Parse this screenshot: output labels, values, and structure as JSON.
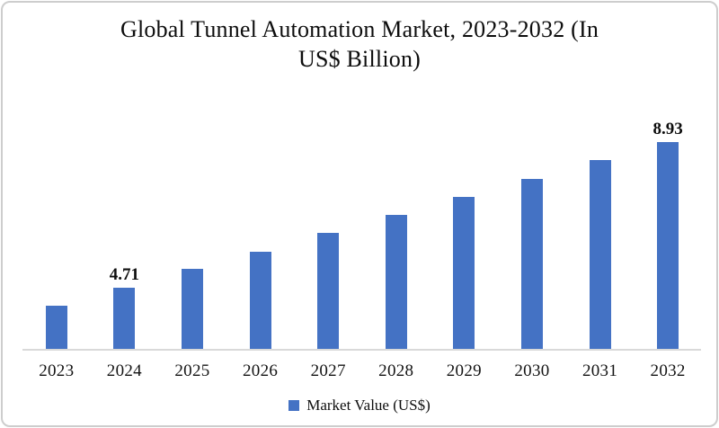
{
  "header": {
    "title_lines": [
      "Global Tunnel Automation Market, 2023-2032 (In",
      "US$ Billion)"
    ]
  },
  "chart_data": {
    "type": "bar",
    "title": "Global Tunnel Automation Market, 2023-2032 (In US$ Billion)",
    "xlabel": "",
    "ylabel": "",
    "categories": [
      "2023",
      "2024",
      "2025",
      "2026",
      "2027",
      "2028",
      "2029",
      "2030",
      "2031",
      "2032"
    ],
    "series": [
      {
        "name": "Market Value (US$)",
        "values": [
          4.18,
          4.71,
          5.24,
          5.76,
          6.29,
          6.82,
          7.35,
          7.87,
          8.4,
          8.93
        ]
      }
    ],
    "points": [
      {
        "year": "2023",
        "value": 4.18,
        "label": ""
      },
      {
        "year": "2024",
        "value": 4.71,
        "label": "4.71"
      },
      {
        "year": "2025",
        "value": 5.24,
        "label": ""
      },
      {
        "year": "2026",
        "value": 5.76,
        "label": ""
      },
      {
        "year": "2027",
        "value": 6.29,
        "label": ""
      },
      {
        "year": "2028",
        "value": 6.82,
        "label": ""
      },
      {
        "year": "2029",
        "value": 7.35,
        "label": ""
      },
      {
        "year": "2030",
        "value": 7.87,
        "label": ""
      },
      {
        "year": "2031",
        "value": 8.4,
        "label": ""
      },
      {
        "year": "2032",
        "value": 8.93,
        "label": "8.93"
      }
    ],
    "visible_data_labels": {
      "2024": "4.71",
      "2032": "8.93"
    },
    "ylim": [
      2.9,
      9.9
    ],
    "axes": {
      "y_axis_visible": false,
      "gridlines": false,
      "x_axis_line": true
    },
    "legend": {
      "position": "bottom",
      "entries": [
        "Market Value (US$)"
      ]
    },
    "colors": {
      "bar": "#4472C4",
      "axis_line": "#D9D9D9",
      "text": "#0D0D0D",
      "frame_border": "#CDCDCD",
      "background": "#FFFFFF"
    }
  }
}
